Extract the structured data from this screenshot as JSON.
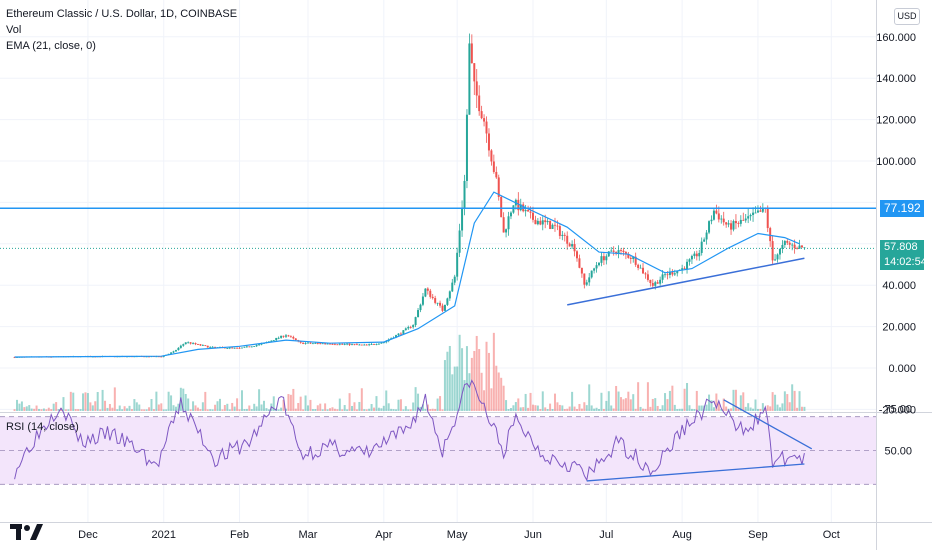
{
  "legend": {
    "title": "Ethereum Classic / U.S. Dollar, 1D, COINBASE",
    "vol": "Vol",
    "ema": "EMA (21, close, 0)",
    "rsi": "RSI (14, close)"
  },
  "currency_button": "USD",
  "price_tags": {
    "level": "77.192",
    "last": "57.808",
    "countdown": "14:02:54"
  },
  "colors": {
    "up": "#26a69a",
    "down": "#ef5350",
    "ema": "#2196f3",
    "trendline": "#3a6fd8",
    "hline": "#2196f3",
    "rsi": "#7e57c2",
    "rsi_band": "#f3e5fb"
  },
  "chart_data": [
    {
      "type": "candlestick",
      "title": "Ethereum Classic / U.S. Dollar, 1D, COINBASE",
      "y_ticks": [
        "160.000",
        "140.000",
        "120.000",
        "100.000",
        "80.000",
        "60.000",
        "40.000",
        "20.000",
        "0.000",
        "-20.000"
      ],
      "ylim": [
        -20,
        170
      ],
      "x_ticks": [
        "Dec",
        "2021",
        "Feb",
        "Mar",
        "Apr",
        "May",
        "Jun",
        "Jul",
        "Aug",
        "Sep",
        "Oct"
      ],
      "x_range": [
        "2020-11-01",
        "2021-10-15"
      ],
      "close_path": [
        [
          "2020-11-01",
          5.2
        ],
        [
          "2020-12-01",
          5.6
        ],
        [
          "2020-12-31",
          5.5
        ],
        [
          "2021-01-05",
          7.8
        ],
        [
          "2021-01-10",
          12.5
        ],
        [
          "2021-01-20",
          10.0
        ],
        [
          "2021-02-01",
          9.5
        ],
        [
          "2021-02-10",
          11.5
        ],
        [
          "2021-02-20",
          16.0
        ],
        [
          "2021-02-26",
          12.0
        ],
        [
          "2021-03-10",
          11.8
        ],
        [
          "2021-03-25",
          11.0
        ],
        [
          "2021-04-01",
          12.5
        ],
        [
          "2021-04-08",
          17.0
        ],
        [
          "2021-04-13",
          21.0
        ],
        [
          "2021-04-18",
          38.0
        ],
        [
          "2021-04-25",
          28.0
        ],
        [
          "2021-04-30",
          44.0
        ],
        [
          "2021-05-04",
          90.0
        ],
        [
          "2021-05-06",
          155.0
        ],
        [
          "2021-05-08",
          135.0
        ],
        [
          "2021-05-12",
          120.0
        ],
        [
          "2021-05-17",
          90.0
        ],
        [
          "2021-05-20",
          65.0
        ],
        [
          "2021-05-24",
          80.0
        ],
        [
          "2021-06-01",
          72.0
        ],
        [
          "2021-06-10",
          68.0
        ],
        [
          "2021-06-18",
          58.0
        ],
        [
          "2021-06-22",
          40.0
        ],
        [
          "2021-06-28",
          52.0
        ],
        [
          "2021-07-05",
          57.0
        ],
        [
          "2021-07-12",
          53.0
        ],
        [
          "2021-07-20",
          40.0
        ],
        [
          "2021-07-25",
          45.0
        ],
        [
          "2021-08-01",
          48.0
        ],
        [
          "2021-08-08",
          56.0
        ],
        [
          "2021-08-14",
          76.0
        ],
        [
          "2021-08-20",
          68.0
        ],
        [
          "2021-08-28",
          72.0
        ],
        [
          "2021-09-04",
          76.5
        ],
        [
          "2021-09-07",
          52.0
        ],
        [
          "2021-09-12",
          60.0
        ],
        [
          "2021-09-20",
          58.0
        ]
      ],
      "ema_path": [
        [
          "2020-11-01",
          5.3
        ],
        [
          "2020-12-31",
          5.7
        ],
        [
          "2021-01-15",
          9.0
        ],
        [
          "2021-02-01",
          10.5
        ],
        [
          "2021-02-20",
          13.5
        ],
        [
          "2021-03-10",
          12.0
        ],
        [
          "2021-04-01",
          12.5
        ],
        [
          "2021-04-15",
          19.0
        ],
        [
          "2021-04-30",
          30.0
        ],
        [
          "2021-05-08",
          70.0
        ],
        [
          "2021-05-16",
          85.0
        ],
        [
          "2021-05-28",
          78.0
        ],
        [
          "2021-06-15",
          68.0
        ],
        [
          "2021-06-28",
          56.0
        ],
        [
          "2021-07-10",
          55.0
        ],
        [
          "2021-07-25",
          46.0
        ],
        [
          "2021-08-05",
          48.0
        ],
        [
          "2021-08-20",
          58.0
        ],
        [
          "2021-09-01",
          65.0
        ],
        [
          "2021-09-12",
          63.0
        ],
        [
          "2021-09-18",
          60.0
        ]
      ],
      "horizontal_line": 77.192,
      "last_price": 57.808,
      "trendline": [
        [
          "2021-06-15",
          30.5
        ],
        [
          "2021-09-20",
          53.0
        ]
      ]
    },
    {
      "type": "line",
      "title": "RSI (14, close)",
      "y_ticks": [
        "75.00",
        "50.00"
      ],
      "band": [
        30,
        70
      ],
      "ylim": [
        24,
        100
      ],
      "rsi_path": [
        [
          "2020-11-01",
          38
        ],
        [
          "2020-11-08",
          55
        ],
        [
          "2020-11-20",
          78
        ],
        [
          "2020-11-28",
          55
        ],
        [
          "2020-12-10",
          60
        ],
        [
          "2020-12-22",
          50
        ],
        [
          "2020-12-29",
          40
        ],
        [
          "2021-01-08",
          78
        ],
        [
          "2021-01-22",
          45
        ],
        [
          "2021-02-05",
          55
        ],
        [
          "2021-02-18",
          82
        ],
        [
          "2021-02-26",
          48
        ],
        [
          "2021-03-10",
          52
        ],
        [
          "2021-03-25",
          48
        ],
        [
          "2021-04-10",
          62
        ],
        [
          "2021-04-18",
          80
        ],
        [
          "2021-04-25",
          50
        ],
        [
          "2021-05-06",
          92
        ],
        [
          "2021-05-12",
          75
        ],
        [
          "2021-05-20",
          50
        ],
        [
          "2021-05-25",
          68
        ],
        [
          "2021-06-05",
          48
        ],
        [
          "2021-06-20",
          40
        ],
        [
          "2021-06-23",
          34
        ],
        [
          "2021-07-06",
          55
        ],
        [
          "2021-07-20",
          38
        ],
        [
          "2021-08-01",
          62
        ],
        [
          "2021-08-14",
          80
        ],
        [
          "2021-08-24",
          62
        ],
        [
          "2021-09-05",
          72
        ],
        [
          "2021-09-07",
          42
        ],
        [
          "2021-09-15",
          47
        ],
        [
          "2021-09-20",
          44
        ]
      ],
      "trendlines": [
        [
          [
            "2021-06-23",
            32
          ],
          [
            "2021-09-20",
            42
          ]
        ],
        [
          [
            "2021-08-18",
            80
          ],
          [
            "2021-09-23",
            51
          ]
        ]
      ]
    }
  ]
}
